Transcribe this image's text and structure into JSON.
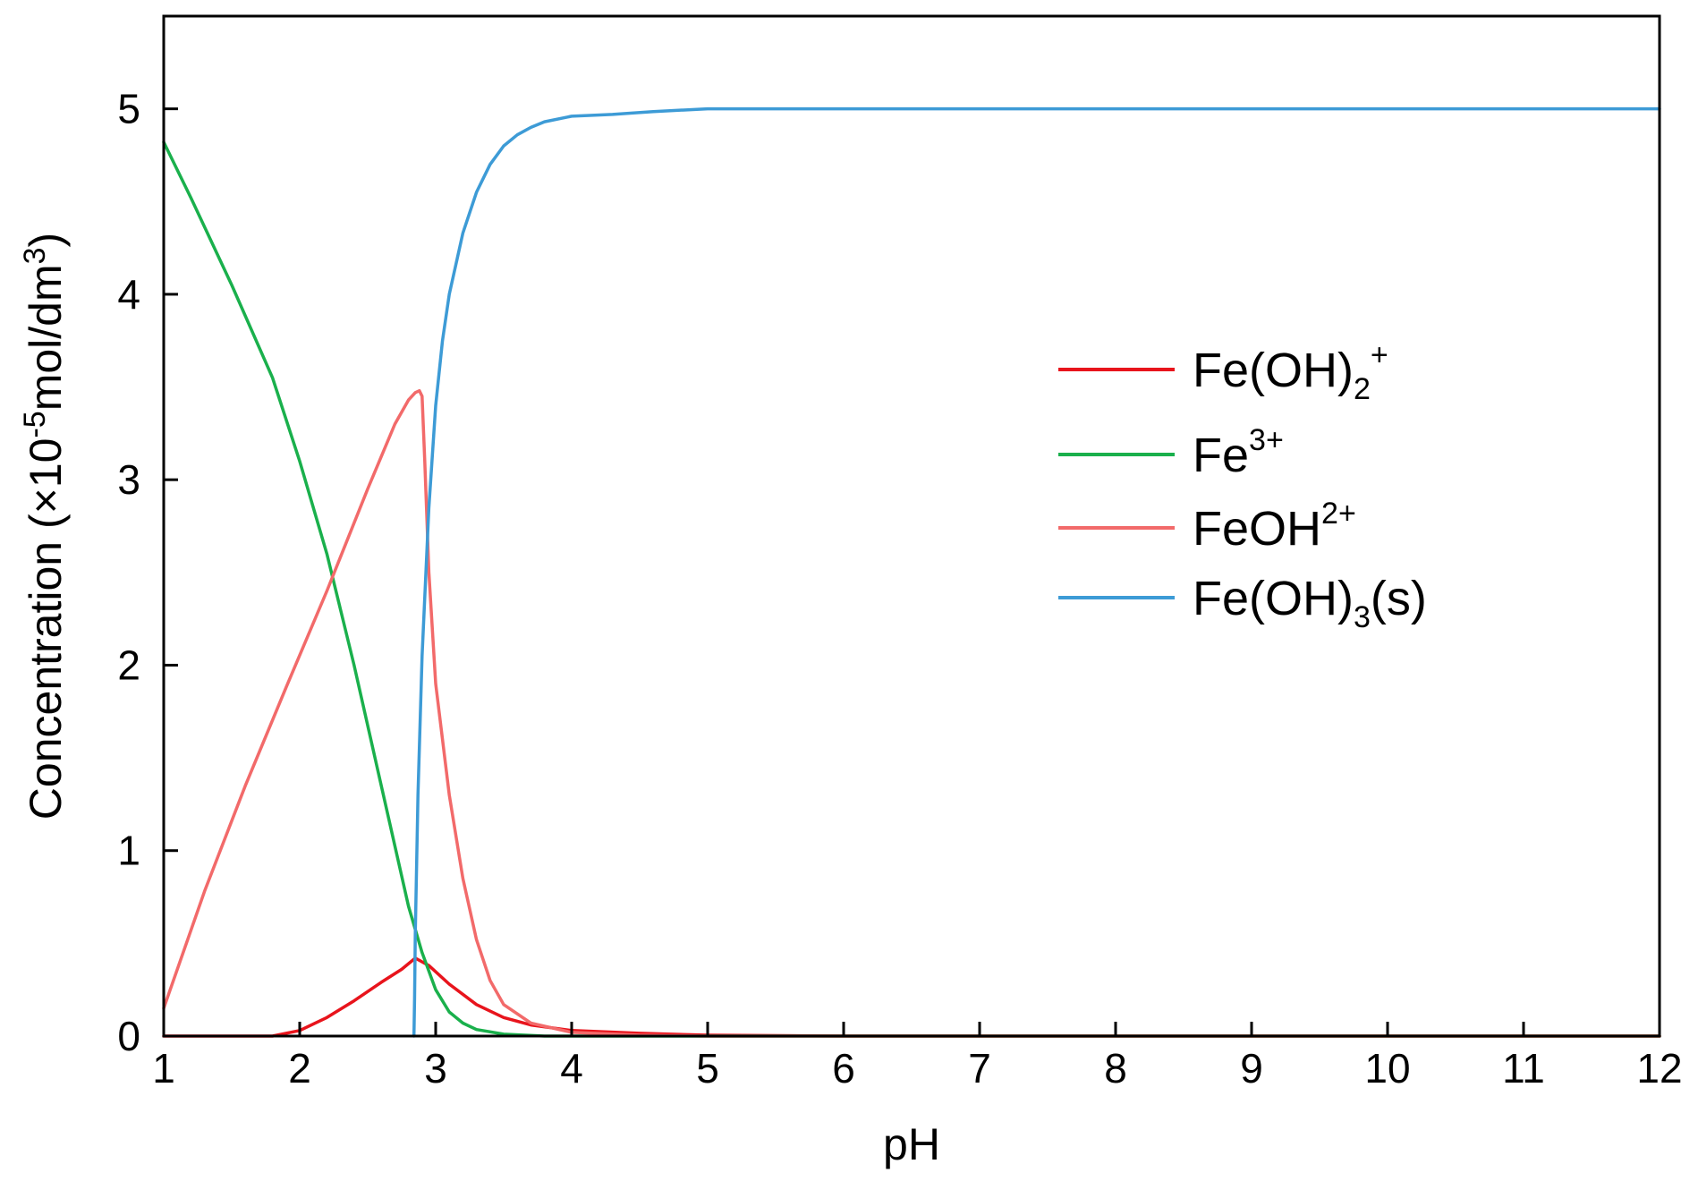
{
  "chart_data": {
    "type": "line",
    "xlabel": "pH",
    "ylabel": {
      "base": "Concentration (×10",
      "exp1": "-5",
      "mid": "mol/dm",
      "exp2": "3",
      "close": ")"
    },
    "xlim": [
      1,
      12
    ],
    "ylim": [
      0,
      5.5
    ],
    "xticks": [
      1,
      2,
      3,
      4,
      5,
      6,
      7,
      8,
      9,
      10,
      11,
      12
    ],
    "yticks": [
      0,
      1,
      2,
      3,
      4,
      5
    ],
    "grid": false,
    "legend_position": "right-middle",
    "series": [
      {
        "name": "Fe(OH)2+",
        "legend": {
          "base": "Fe(OH)",
          "sub": "2",
          "sup": "+"
        },
        "color": "#e8141c",
        "x": [
          1,
          1.5,
          1.8,
          2.0,
          2.2,
          2.4,
          2.6,
          2.75,
          2.85,
          2.95,
          3.1,
          3.3,
          3.5,
          3.7,
          4.0,
          4.5,
          5.0,
          6.0,
          12.0
        ],
        "y": [
          0,
          0,
          0,
          0.03,
          0.1,
          0.19,
          0.29,
          0.36,
          0.42,
          0.38,
          0.28,
          0.17,
          0.1,
          0.06,
          0.03,
          0.015,
          0.005,
          0,
          0
        ]
      },
      {
        "name": "Fe3+",
        "legend": {
          "base": "Fe",
          "sub": "",
          "sup": "3+"
        },
        "color": "#1ab04c",
        "x": [
          1.0,
          1.2,
          1.5,
          1.8,
          2.0,
          2.2,
          2.4,
          2.6,
          2.8,
          2.9,
          3.0,
          3.1,
          3.2,
          3.3,
          3.5,
          3.8,
          4.0,
          12.0
        ],
        "y": [
          4.82,
          4.52,
          4.05,
          3.55,
          3.1,
          2.6,
          2.0,
          1.35,
          0.7,
          0.45,
          0.25,
          0.13,
          0.07,
          0.035,
          0.01,
          0,
          0,
          0
        ]
      },
      {
        "name": "FeOH2+",
        "legend": {
          "base": "FeOH",
          "sub": "",
          "sup": "2+"
        },
        "color": "#f26a6a",
        "x": [
          1.0,
          1.3,
          1.6,
          1.9,
          2.2,
          2.5,
          2.7,
          2.8,
          2.85,
          2.88,
          2.9,
          2.92,
          2.95,
          3.0,
          3.1,
          3.2,
          3.3,
          3.4,
          3.5,
          3.7,
          4.0,
          4.5,
          5.0,
          12.0
        ],
        "y": [
          0.15,
          0.78,
          1.35,
          1.88,
          2.4,
          2.95,
          3.3,
          3.43,
          3.47,
          3.48,
          3.45,
          3.1,
          2.5,
          1.9,
          1.3,
          0.85,
          0.52,
          0.3,
          0.17,
          0.07,
          0.02,
          0.005,
          0,
          0
        ]
      },
      {
        "name": "Fe(OH)3(s)",
        "legend": {
          "base": "Fe(OH)",
          "sub": "3",
          "sup": "",
          "tail": "(s)"
        },
        "color": "#3d9bd6",
        "x": [
          2.84,
          2.845,
          2.85,
          2.87,
          2.9,
          2.95,
          3.0,
          3.05,
          3.1,
          3.2,
          3.3,
          3.4,
          3.5,
          3.6,
          3.7,
          3.8,
          4.0,
          4.3,
          4.6,
          5.0,
          12.0
        ],
        "y": [
          0,
          0.2,
          0.55,
          1.3,
          2.05,
          2.85,
          3.4,
          3.75,
          4.0,
          4.33,
          4.55,
          4.7,
          4.8,
          4.86,
          4.9,
          4.93,
          4.96,
          4.97,
          4.985,
          5.0,
          5.0
        ]
      }
    ]
  }
}
